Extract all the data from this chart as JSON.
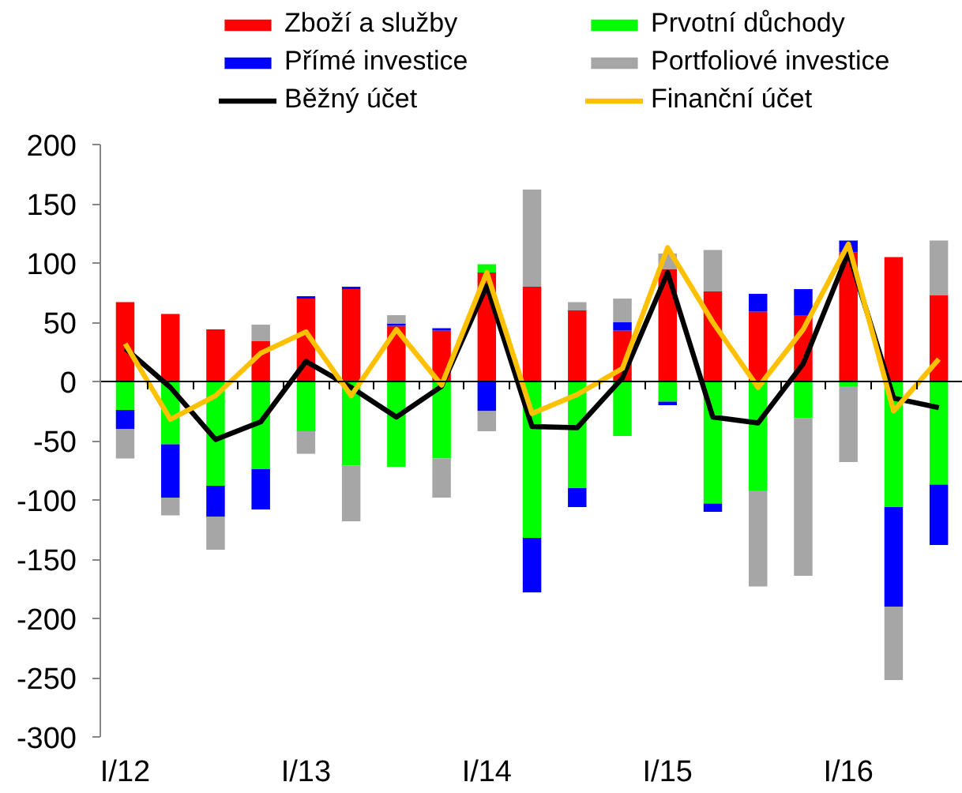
{
  "chart_data": {
    "type": "bar",
    "stacked": true,
    "categories": [
      "I/12",
      null,
      null,
      null,
      "I/13",
      null,
      null,
      null,
      "I/14",
      null,
      null,
      null,
      "I/15",
      null,
      null,
      null,
      "I/16",
      null,
      null
    ],
    "series": [
      {
        "name": "Zboží a služby",
        "color": "#ff0000",
        "values": [
          67,
          57,
          44,
          34,
          70,
          78,
          47,
          43,
          92,
          80,
          60,
          43,
          95,
          76,
          59,
          56,
          109,
          105,
          73
        ]
      },
      {
        "name": "Prvotní důchody",
        "color": "#00ff00",
        "values": [
          -24,
          -53,
          -88,
          -74,
          -42,
          -71,
          -72,
          -65,
          7,
          -132,
          -90,
          -46,
          -17,
          -103,
          -92,
          -31,
          -4,
          -106,
          -87
        ]
      },
      {
        "name": "Přímé investice",
        "color": "#0000ff",
        "values": [
          -16,
          -45,
          -26,
          -34,
          2,
          2,
          2,
          2,
          -25,
          -46,
          -16,
          7,
          -3,
          -7,
          15,
          22,
          10,
          -84,
          -51
        ]
      },
      {
        "name": "Portfoliové investice",
        "color": "#a6a6a6",
        "values": [
          -25,
          -15,
          -28,
          14,
          -19,
          -47,
          7,
          -33,
          -17,
          82,
          7,
          20,
          13,
          35,
          -81,
          -133,
          -64,
          -62,
          46
        ]
      },
      {
        "name": "Běžný účet",
        "type": "line",
        "color": "#000000",
        "values": [
          28,
          -5,
          -49,
          -34,
          17,
          -5,
          -30,
          -4,
          81,
          -38,
          -39,
          3,
          92,
          -30,
          -35,
          15,
          109,
          -14,
          -22
        ]
      },
      {
        "name": "Finanční účet",
        "type": "line",
        "color": "#ffc000",
        "values": [
          32,
          -32,
          -12,
          24,
          42,
          -12,
          44,
          -3,
          92,
          -27,
          -11,
          11,
          113,
          50,
          -5,
          44,
          116,
          -25,
          19
        ]
      }
    ],
    "ylim": [
      -300,
      200
    ],
    "yticks": [
      -300,
      -250,
      -200,
      -150,
      -100,
      -50,
      0,
      50,
      100,
      150,
      200
    ],
    "legend": "top"
  }
}
